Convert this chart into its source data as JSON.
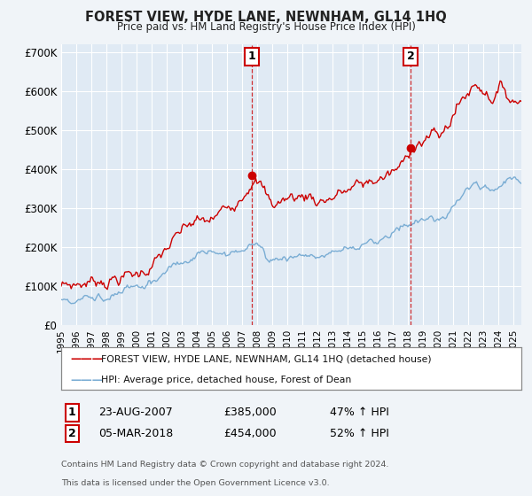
{
  "title": "FOREST VIEW, HYDE LANE, NEWNHAM, GL14 1HQ",
  "subtitle": "Price paid vs. HM Land Registry's House Price Index (HPI)",
  "legend_line1": "FOREST VIEW, HYDE LANE, NEWNHAM, GL14 1HQ (detached house)",
  "legend_line2": "HPI: Average price, detached house, Forest of Dean",
  "footnote1": "Contains HM Land Registry data © Crown copyright and database right 2024.",
  "footnote2": "This data is licensed under the Open Government Licence v3.0.",
  "annotation1_label": "1",
  "annotation1_date": "23-AUG-2007",
  "annotation1_price": "£385,000",
  "annotation1_hpi": "47% ↑ HPI",
  "annotation2_label": "2",
  "annotation2_date": "05-MAR-2018",
  "annotation2_price": "£454,000",
  "annotation2_hpi": "52% ↑ HPI",
  "red_color": "#cc0000",
  "blue_color": "#7aadd4",
  "bg_color": "#f0f4f8",
  "plot_bg": "#e0eaf4",
  "grid_color": "#ffffff",
  "ylim": [
    0,
    720000
  ],
  "yticks": [
    0,
    100000,
    200000,
    300000,
    400000,
    500000,
    600000,
    700000
  ],
  "ytick_labels": [
    "£0",
    "£100K",
    "£200K",
    "£300K",
    "£400K",
    "£500K",
    "£600K",
    "£700K"
  ],
  "marker1_x": 2007.65,
  "marker1_y": 385000,
  "marker2_x": 2018.17,
  "marker2_y": 454000,
  "xmin": 1995,
  "xmax": 2025.5
}
